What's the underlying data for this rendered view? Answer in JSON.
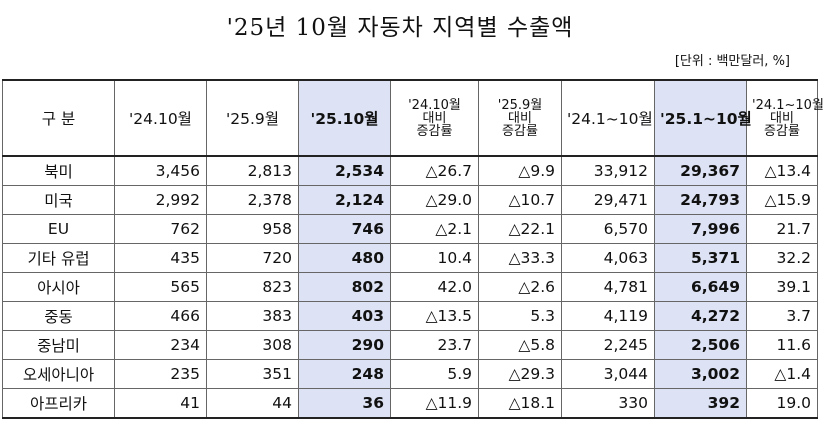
{
  "title": "'25년 10월 자동차 지역별 수출액",
  "unit": "[단위 : 백만달러, %]",
  "columns": [
    {
      "label": "구  분"
    },
    {
      "label": "'24.10월"
    },
    {
      "label": "'25.9월"
    },
    {
      "label": "'25.10월"
    },
    {
      "lines": [
        "'24.10월",
        "대비",
        "증감률"
      ]
    },
    {
      "lines": [
        "'25.9월",
        "대비",
        "증감률"
      ]
    },
    {
      "label": "'24.1~10월"
    },
    {
      "label": "'25.1~10월"
    },
    {
      "lines": [
        "'24.1~10월",
        "대비",
        "증감률"
      ]
    }
  ],
  "rows": [
    {
      "region": "북미",
      "v1": "3,456",
      "v2": "2,813",
      "v3": "2,534",
      "c1": "△26.7",
      "c2": "△9.9",
      "v4": "33,912",
      "v5": "29,367",
      "c3": "△13.4"
    },
    {
      "region": "미국",
      "v1": "2,992",
      "v2": "2,378",
      "v3": "2,124",
      "c1": "△29.0",
      "c2": "△10.7",
      "v4": "29,471",
      "v5": "24,793",
      "c3": "△15.9"
    },
    {
      "region": "EU",
      "v1": "762",
      "v2": "958",
      "v3": "746",
      "c1": "△2.1",
      "c2": "△22.1",
      "v4": "6,570",
      "v5": "7,996",
      "c3": "21.7"
    },
    {
      "region": "기타 유럽",
      "v1": "435",
      "v2": "720",
      "v3": "480",
      "c1": "10.4",
      "c2": "△33.3",
      "v4": "4,063",
      "v5": "5,371",
      "c3": "32.2"
    },
    {
      "region": "아시아",
      "v1": "565",
      "v2": "823",
      "v3": "802",
      "c1": "42.0",
      "c2": "△2.6",
      "v4": "4,781",
      "v5": "6,649",
      "c3": "39.1"
    },
    {
      "region": "중동",
      "v1": "466",
      "v2": "383",
      "v3": "403",
      "c1": "△13.5",
      "c2": "5.3",
      "v4": "4,119",
      "v5": "4,272",
      "c3": "3.7"
    },
    {
      "region": "중남미",
      "v1": "234",
      "v2": "308",
      "v3": "290",
      "c1": "23.7",
      "c2": "△5.8",
      "v4": "2,245",
      "v5": "2,506",
      "c3": "11.6"
    },
    {
      "region": "오세아니아",
      "v1": "235",
      "v2": "351",
      "v3": "248",
      "c1": "5.9",
      "c2": "△29.3",
      "v4": "3,044",
      "v5": "3,002",
      "c3": "△1.4"
    },
    {
      "region": "아프리카",
      "v1": "41",
      "v2": "44",
      "v3": "36",
      "c1": "△11.9",
      "c2": "△18.1",
      "v4": "330",
      "v5": "392",
      "c3": "19.0"
    }
  ],
  "colors": {
    "highlight": "#dde3f4"
  }
}
